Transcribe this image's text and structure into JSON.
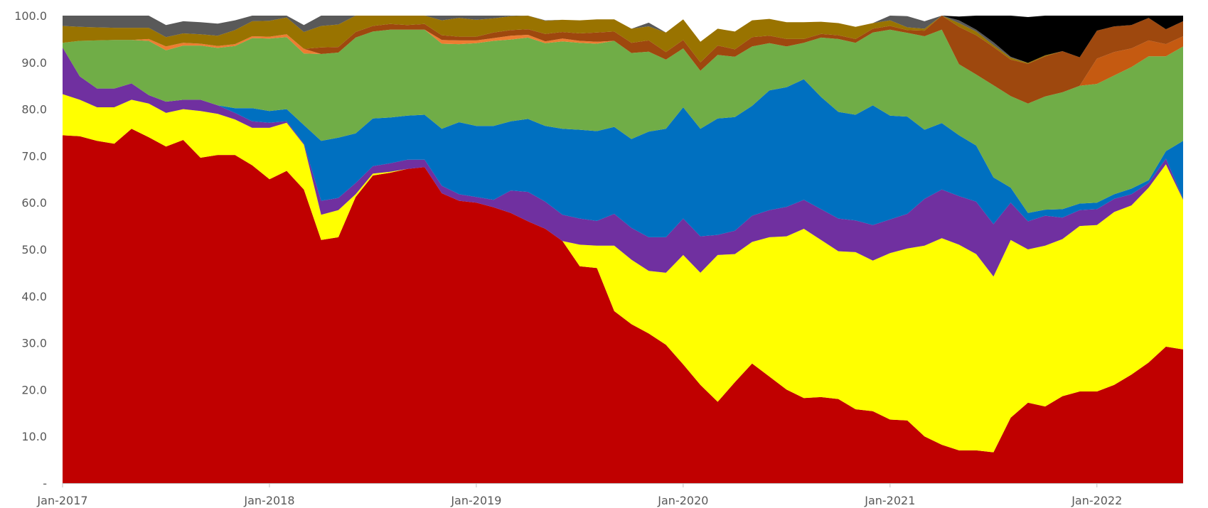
{
  "chart_data": {
    "type": "area",
    "stacked": true,
    "ylim": [
      0,
      100
    ],
    "y_ticks": [
      0,
      10,
      20,
      30,
      40,
      50,
      60,
      70,
      80,
      90,
      100
    ],
    "y_tick_labels": [
      "-",
      "10.0",
      "20.0",
      "30.0",
      "40.0",
      "50.0",
      "60.0",
      "70.0",
      "80.0",
      "90.0",
      "100.0"
    ],
    "x_tick_labels": [
      "Jan-2017",
      "Jan-2018",
      "Jan-2019",
      "Jan-2020",
      "Jan-2021",
      "Jan-2022"
    ],
    "x_tick_index": [
      0,
      12,
      24,
      36,
      48,
      60
    ],
    "grid": false,
    "legend": "none",
    "x": [
      "Jan-2017",
      "Feb-2017",
      "Mar-2017",
      "Apr-2017",
      "May-2017",
      "Jun-2017",
      "Jul-2017",
      "Aug-2017",
      "Sep-2017",
      "Oct-2017",
      "Nov-2017",
      "Dec-2017",
      "Jan-2018",
      "Feb-2018",
      "Mar-2018",
      "Apr-2018",
      "May-2018",
      "Jun-2018",
      "Jul-2018",
      "Aug-2018",
      "Sep-2018",
      "Oct-2018",
      "Nov-2018",
      "Dec-2018",
      "Jan-2019",
      "Feb-2019",
      "Mar-2019",
      "Apr-2019",
      "May-2019",
      "Jun-2019",
      "Jul-2019",
      "Aug-2019",
      "Sep-2019",
      "Oct-2019",
      "Nov-2019",
      "Dec-2019",
      "Jan-2020",
      "Feb-2020",
      "Mar-2020",
      "Apr-2020",
      "May-2020",
      "Jun-2020",
      "Jul-2020",
      "Aug-2020",
      "Sep-2020",
      "Oct-2020",
      "Nov-2020",
      "Dec-2020",
      "Jan-2021",
      "Feb-2021",
      "Mar-2021",
      "Apr-2021",
      "May-2021",
      "Jun-2021",
      "Jul-2021",
      "Aug-2021",
      "Sep-2021",
      "Oct-2021",
      "Nov-2021",
      "Dec-2021",
      "Jan-2022",
      "Feb-2022",
      "Mar-2022",
      "Apr-2022",
      "May-2022",
      "Jun-2022"
    ],
    "series": [
      {
        "color": "#c00000",
        "values": [
          74.4,
          74.2,
          73.2,
          72.6,
          75.8,
          74.0,
          72.0,
          73.4,
          69.6,
          70.2,
          70.2,
          68.0,
          65.0,
          66.8,
          62.8,
          52.0,
          52.6,
          61.2,
          65.8,
          66.4,
          67.2,
          67.6,
          62.0,
          60.4,
          60.0,
          59.0,
          57.8,
          56.0,
          54.4,
          51.8,
          46.4,
          46.0,
          36.8,
          34.0,
          32.0,
          29.6,
          25.4,
          21.0,
          17.4,
          21.6,
          25.6,
          22.8,
          20.0,
          18.2,
          18.4,
          18.0,
          15.8,
          15.4,
          13.6,
          13.4,
          10.0,
          8.2,
          7.0,
          7.0,
          6.6,
          14.0,
          17.2,
          16.4,
          18.6,
          19.6,
          19.6,
          21.0,
          23.2,
          25.8,
          29.2,
          28.6
        ]
      },
      {
        "color": "#ffff00",
        "values": [
          8.8,
          7.8,
          7.2,
          7.8,
          6.2,
          7.2,
          7.2,
          6.6,
          10.0,
          8.8,
          7.6,
          8.0,
          11.0,
          10.3,
          9.6,
          5.4,
          5.8,
          0.6,
          0.4,
          0.2,
          0,
          0,
          0,
          0,
          0,
          0,
          0,
          0,
          0,
          0,
          4.6,
          4.8,
          14.0,
          13.8,
          13.4,
          15.4,
          23.4,
          24.0,
          31.4,
          27.4,
          26.0,
          29.8,
          32.8,
          36.2,
          33.6,
          31.6,
          33.6,
          32.2,
          35.6,
          36.8,
          40.8,
          44.2,
          44.0,
          42.0,
          37.6,
          38.0,
          32.8,
          34.4,
          33.6,
          35.4,
          35.6,
          37.0,
          36.2,
          37.4,
          39.0,
          32.0
        ]
      },
      {
        "color": "#7030a0",
        "values": [
          10.0,
          5.0,
          4.0,
          4.0,
          3.5,
          1.8,
          2.4,
          2.0,
          2.4,
          1.8,
          1.4,
          1.4,
          1.1,
          0.3,
          0.2,
          3.0,
          2.6,
          2.4,
          1.6,
          1.8,
          2.0,
          1.6,
          1.6,
          1.4,
          1.2,
          1.6,
          4.8,
          6.3,
          5.8,
          5.6,
          5.6,
          5.3,
          6.8,
          6.8,
          7.2,
          7.6,
          7.8,
          7.8,
          4.3,
          5.0,
          5.6,
          5.8,
          6.3,
          6.2,
          6.6,
          7.0,
          6.8,
          7.6,
          7.2,
          7.4,
          10.0,
          10.4,
          10.4,
          11.2,
          11.2,
          8.0,
          6.0,
          6.4,
          4.6,
          3.4,
          3.4,
          2.8,
          2.4,
          1.0,
          1.2,
          0.2
        ]
      },
      {
        "color": "#0070c0",
        "values": [
          0,
          0,
          0,
          0,
          0,
          0,
          0,
          0,
          0,
          0,
          1.0,
          2.8,
          2.5,
          2.6,
          4.0,
          12.8,
          12.9,
          10.6,
          10.2,
          9.8,
          9.4,
          9.6,
          12.2,
          15.4,
          15.2,
          15.8,
          14.8,
          15.6,
          16.2,
          18.4,
          19.0,
          19.2,
          18.6,
          19.0,
          22.6,
          23.2,
          23.8,
          23.0,
          24.9,
          24.3,
          23.5,
          25.6,
          25.6,
          25.8,
          24.0,
          22.8,
          22.6,
          25.6,
          22.2,
          20.8,
          14.8,
          14.2,
          13.0,
          12.0,
          10.0,
          3.2,
          1.8,
          1.3,
          1.8,
          1.4,
          1.4,
          1.0,
          1.2,
          0.6,
          1.6,
          12.4
        ]
      },
      {
        "color": "#70ad47",
        "values": [
          1.0,
          7.6,
          10.3,
          10.4,
          9.3,
          11.6,
          11.0,
          11.6,
          11.6,
          12.3,
          13.3,
          15.0,
          15.5,
          15.4,
          15.3,
          18.6,
          18.2,
          20.5,
          18.6,
          18.8,
          18.4,
          18.2,
          18.2,
          16.7,
          17.7,
          18.2,
          17.5,
          17.4,
          17.7,
          18.7,
          18.6,
          18.7,
          18.4,
          18.4,
          17.1,
          14.8,
          12.6,
          12.4,
          13.6,
          12.9,
          12.7,
          10.1,
          8.7,
          7.8,
          12.7,
          15.6,
          15.4,
          15.6,
          18.4,
          17.9,
          20.0,
          20.0,
          15.2,
          15.2,
          19.7,
          19.6,
          23.4,
          24.2,
          25.0,
          25.2,
          25.4,
          25.4,
          26.0,
          26.5,
          20.3,
          20.2
        ]
      },
      {
        "color": "#c55a11",
        "values": [
          0,
          0,
          0,
          0,
          0,
          0,
          0,
          0,
          0,
          0,
          0,
          0,
          0,
          0,
          0,
          0,
          0,
          0,
          0,
          0,
          0,
          0,
          0,
          0,
          0,
          0,
          0,
          0,
          0,
          0,
          0,
          0,
          0,
          0,
          0,
          0,
          0,
          0,
          0,
          0,
          0,
          0,
          0,
          0,
          0,
          0,
          0,
          0,
          0,
          0,
          0,
          0,
          0,
          0,
          0,
          0,
          0,
          0,
          0,
          0,
          5.4,
          5.0,
          4.0,
          3.4,
          2.6,
          2.2
        ]
      },
      {
        "color": "#ed7d31",
        "values": [
          0,
          0,
          0,
          0,
          0,
          0.4,
          0.8,
          0.6,
          0.4,
          0.4,
          0.4,
          0.4,
          0.4,
          0.6,
          1.0,
          0,
          0,
          0,
          0,
          0,
          0,
          0,
          0.8,
          0.8,
          0.6,
          0.6,
          0.8,
          0.6,
          0.4,
          0.6,
          0.4,
          0.4,
          0,
          0,
          0,
          0,
          0,
          0,
          0,
          0,
          0,
          0,
          0,
          0,
          0,
          0,
          0,
          0,
          0,
          0,
          0,
          0,
          0,
          0,
          0,
          0,
          0,
          0,
          0,
          0,
          0,
          0,
          0,
          0,
          0,
          0
        ]
      },
      {
        "color": "#9e480e",
        "values": [
          0,
          0,
          0,
          0,
          0,
          0,
          0,
          0,
          0,
          0,
          0,
          0,
          0,
          0,
          0,
          1.4,
          1.2,
          1.2,
          1.2,
          1.2,
          1.0,
          1.2,
          1.0,
          0.8,
          0.8,
          1.2,
          1.2,
          1.2,
          1.6,
          1.4,
          1.6,
          2.0,
          2.0,
          2.2,
          2.4,
          1.6,
          1.8,
          1.8,
          2.0,
          1.6,
          2.0,
          1.6,
          1.6,
          0.8,
          0.8,
          0.8,
          0.8,
          0.8,
          0.8,
          0.6,
          1.2,
          5.8,
          8.0,
          8.4,
          8.2,
          7.8,
          8.5,
          8.6,
          8.8,
          6.1,
          6.0,
          5.5,
          5.0,
          4.8,
          3.2,
          3.2
        ]
      },
      {
        "color": "#997300",
        "values": [
          3.6,
          3.0,
          2.8,
          2.6,
          2.6,
          2.4,
          2.0,
          2.0,
          2.0,
          2.2,
          3.0,
          3.2,
          3.4,
          3.6,
          3.6,
          4.6,
          4.8,
          3.8,
          2.6,
          2.6,
          2.2,
          2.8,
          3.2,
          4.0,
          3.6,
          3.0,
          3.0,
          3.0,
          2.8,
          2.6,
          2.8,
          2.8,
          2.6,
          3.0,
          3.0,
          4.2,
          4.4,
          4.4,
          3.6,
          3.8,
          3.6,
          3.6,
          3.6,
          3.6,
          2.6,
          2.6,
          2.6,
          1.2,
          1.2,
          0.6,
          0.4,
          1.2,
          0.8,
          0.8,
          0.4,
          0.4,
          0.2,
          0.2,
          0,
          0,
          0,
          0,
          0,
          0,
          0,
          0
        ]
      },
      {
        "color": "#595959",
        "values": [
          2.2,
          2.4,
          2.5,
          2.6,
          2.6,
          2.6,
          2.6,
          2.6,
          2.6,
          2.6,
          2.1,
          1.2,
          1.1,
          0.8,
          1.5,
          2.6,
          2.9,
          0.8,
          0.6,
          0.4,
          0.1,
          0.4,
          1.0,
          0.5,
          0.9,
          0.6,
          0.4,
          0.2,
          0.1,
          0,
          0,
          0,
          0,
          0,
          0.8,
          0,
          0,
          0,
          0,
          0,
          0,
          0,
          0,
          0,
          0,
          0,
          0,
          0,
          1.6,
          2.4,
          1.6,
          0.2,
          0.6,
          0.4,
          0.6,
          0.2,
          0,
          0,
          0,
          0,
          0,
          0,
          0,
          0,
          0,
          0
        ]
      },
      {
        "color": "#000000",
        "values": [
          0,
          0,
          0,
          0,
          0,
          0,
          0,
          0,
          0,
          0,
          0,
          0,
          0,
          0,
          0,
          0,
          0,
          0,
          0,
          0,
          0,
          0,
          0,
          0,
          0,
          0,
          0,
          0,
          0,
          0,
          0,
          0,
          0,
          0,
          0,
          0,
          0,
          0,
          0,
          0,
          0,
          0,
          0,
          0,
          0,
          0,
          0,
          0,
          0,
          0,
          0,
          0,
          0.8,
          3.0,
          7.4,
          8.8,
          9.8,
          8.5,
          8.2,
          8.9,
          3.2,
          3.3,
          3.6,
          3.5,
          3.0,
          2.2
        ]
      }
    ]
  }
}
